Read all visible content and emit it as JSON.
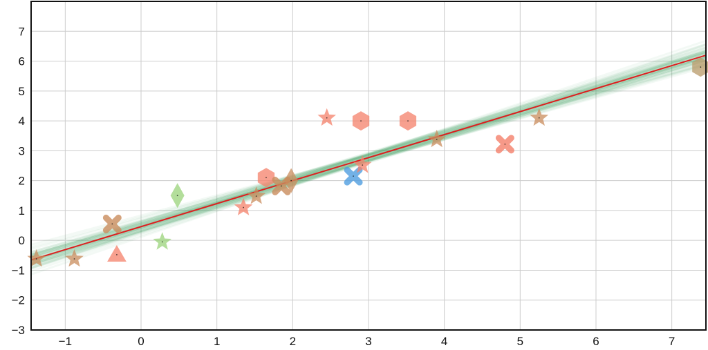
{
  "chart_data": {
    "type": "scatter",
    "title": "",
    "xlabel": "",
    "ylabel": "",
    "xlim": [
      -1.45,
      7.45
    ],
    "ylim": [
      -3,
      8
    ],
    "grid": true,
    "x_ticks": [
      -1,
      0,
      1,
      2,
      3,
      4,
      5,
      6,
      7
    ],
    "x_tick_labels": [
      "−1",
      "0",
      "1",
      "2",
      "3",
      "4",
      "5",
      "6",
      "7"
    ],
    "y_ticks": [
      -3,
      -2,
      -1,
      0,
      1,
      2,
      3,
      4,
      5,
      6,
      7
    ],
    "y_tick_labels": [
      "−3",
      "−2",
      "−1",
      "0",
      "1",
      "2",
      "3",
      "4",
      "5",
      "6",
      "7"
    ],
    "colors": {
      "salmon": "#f4806a",
      "brown": "#c98c5c",
      "light_green": "#9ad37a",
      "blue": "#4f9ee0",
      "olive": "#b89a68",
      "fit_line": "#dd1f1f",
      "band": "#2e9a5c",
      "grid": "#cccccc"
    },
    "fit_line": {
      "slope": 0.77,
      "intercept": 0.46,
      "x_range": [
        -1.45,
        7.45
      ]
    },
    "band": {
      "slope_spread": 0.1,
      "lines": 40
    },
    "points": [
      {
        "x": -1.38,
        "y": -0.62,
        "marker": "star",
        "color": "brown"
      },
      {
        "x": -0.88,
        "y": -0.62,
        "marker": "star",
        "color": "brown"
      },
      {
        "x": -0.38,
        "y": 0.55,
        "marker": "x",
        "color": "brown"
      },
      {
        "x": -0.32,
        "y": -0.48,
        "marker": "triangle",
        "color": "salmon"
      },
      {
        "x": 0.28,
        "y": -0.05,
        "marker": "star",
        "color": "light_green"
      },
      {
        "x": 0.48,
        "y": 1.5,
        "marker": "diamond",
        "color": "light_green"
      },
      {
        "x": 1.35,
        "y": 1.1,
        "marker": "star",
        "color": "salmon"
      },
      {
        "x": 1.52,
        "y": 1.48,
        "marker": "star",
        "color": "brown"
      },
      {
        "x": 1.65,
        "y": 2.1,
        "marker": "hexagon",
        "color": "salmon"
      },
      {
        "x": 1.85,
        "y": 1.82,
        "marker": "x",
        "color": "brown"
      },
      {
        "x": 1.98,
        "y": 2.0,
        "marker": "diamond",
        "color": "brown"
      },
      {
        "x": 2.45,
        "y": 4.1,
        "marker": "star",
        "color": "salmon"
      },
      {
        "x": 2.8,
        "y": 2.15,
        "marker": "x",
        "color": "blue"
      },
      {
        "x": 2.92,
        "y": 2.52,
        "marker": "star",
        "color": "salmon"
      },
      {
        "x": 2.9,
        "y": 4.0,
        "marker": "hexagon",
        "color": "salmon"
      },
      {
        "x": 3.52,
        "y": 4.0,
        "marker": "hexagon",
        "color": "salmon"
      },
      {
        "x": 3.9,
        "y": 3.38,
        "marker": "star",
        "color": "brown"
      },
      {
        "x": 4.8,
        "y": 3.22,
        "marker": "x",
        "color": "salmon"
      },
      {
        "x": 5.25,
        "y": 4.1,
        "marker": "star",
        "color": "brown"
      },
      {
        "x": 7.38,
        "y": 5.8,
        "marker": "hexagon",
        "color": "olive"
      }
    ]
  }
}
